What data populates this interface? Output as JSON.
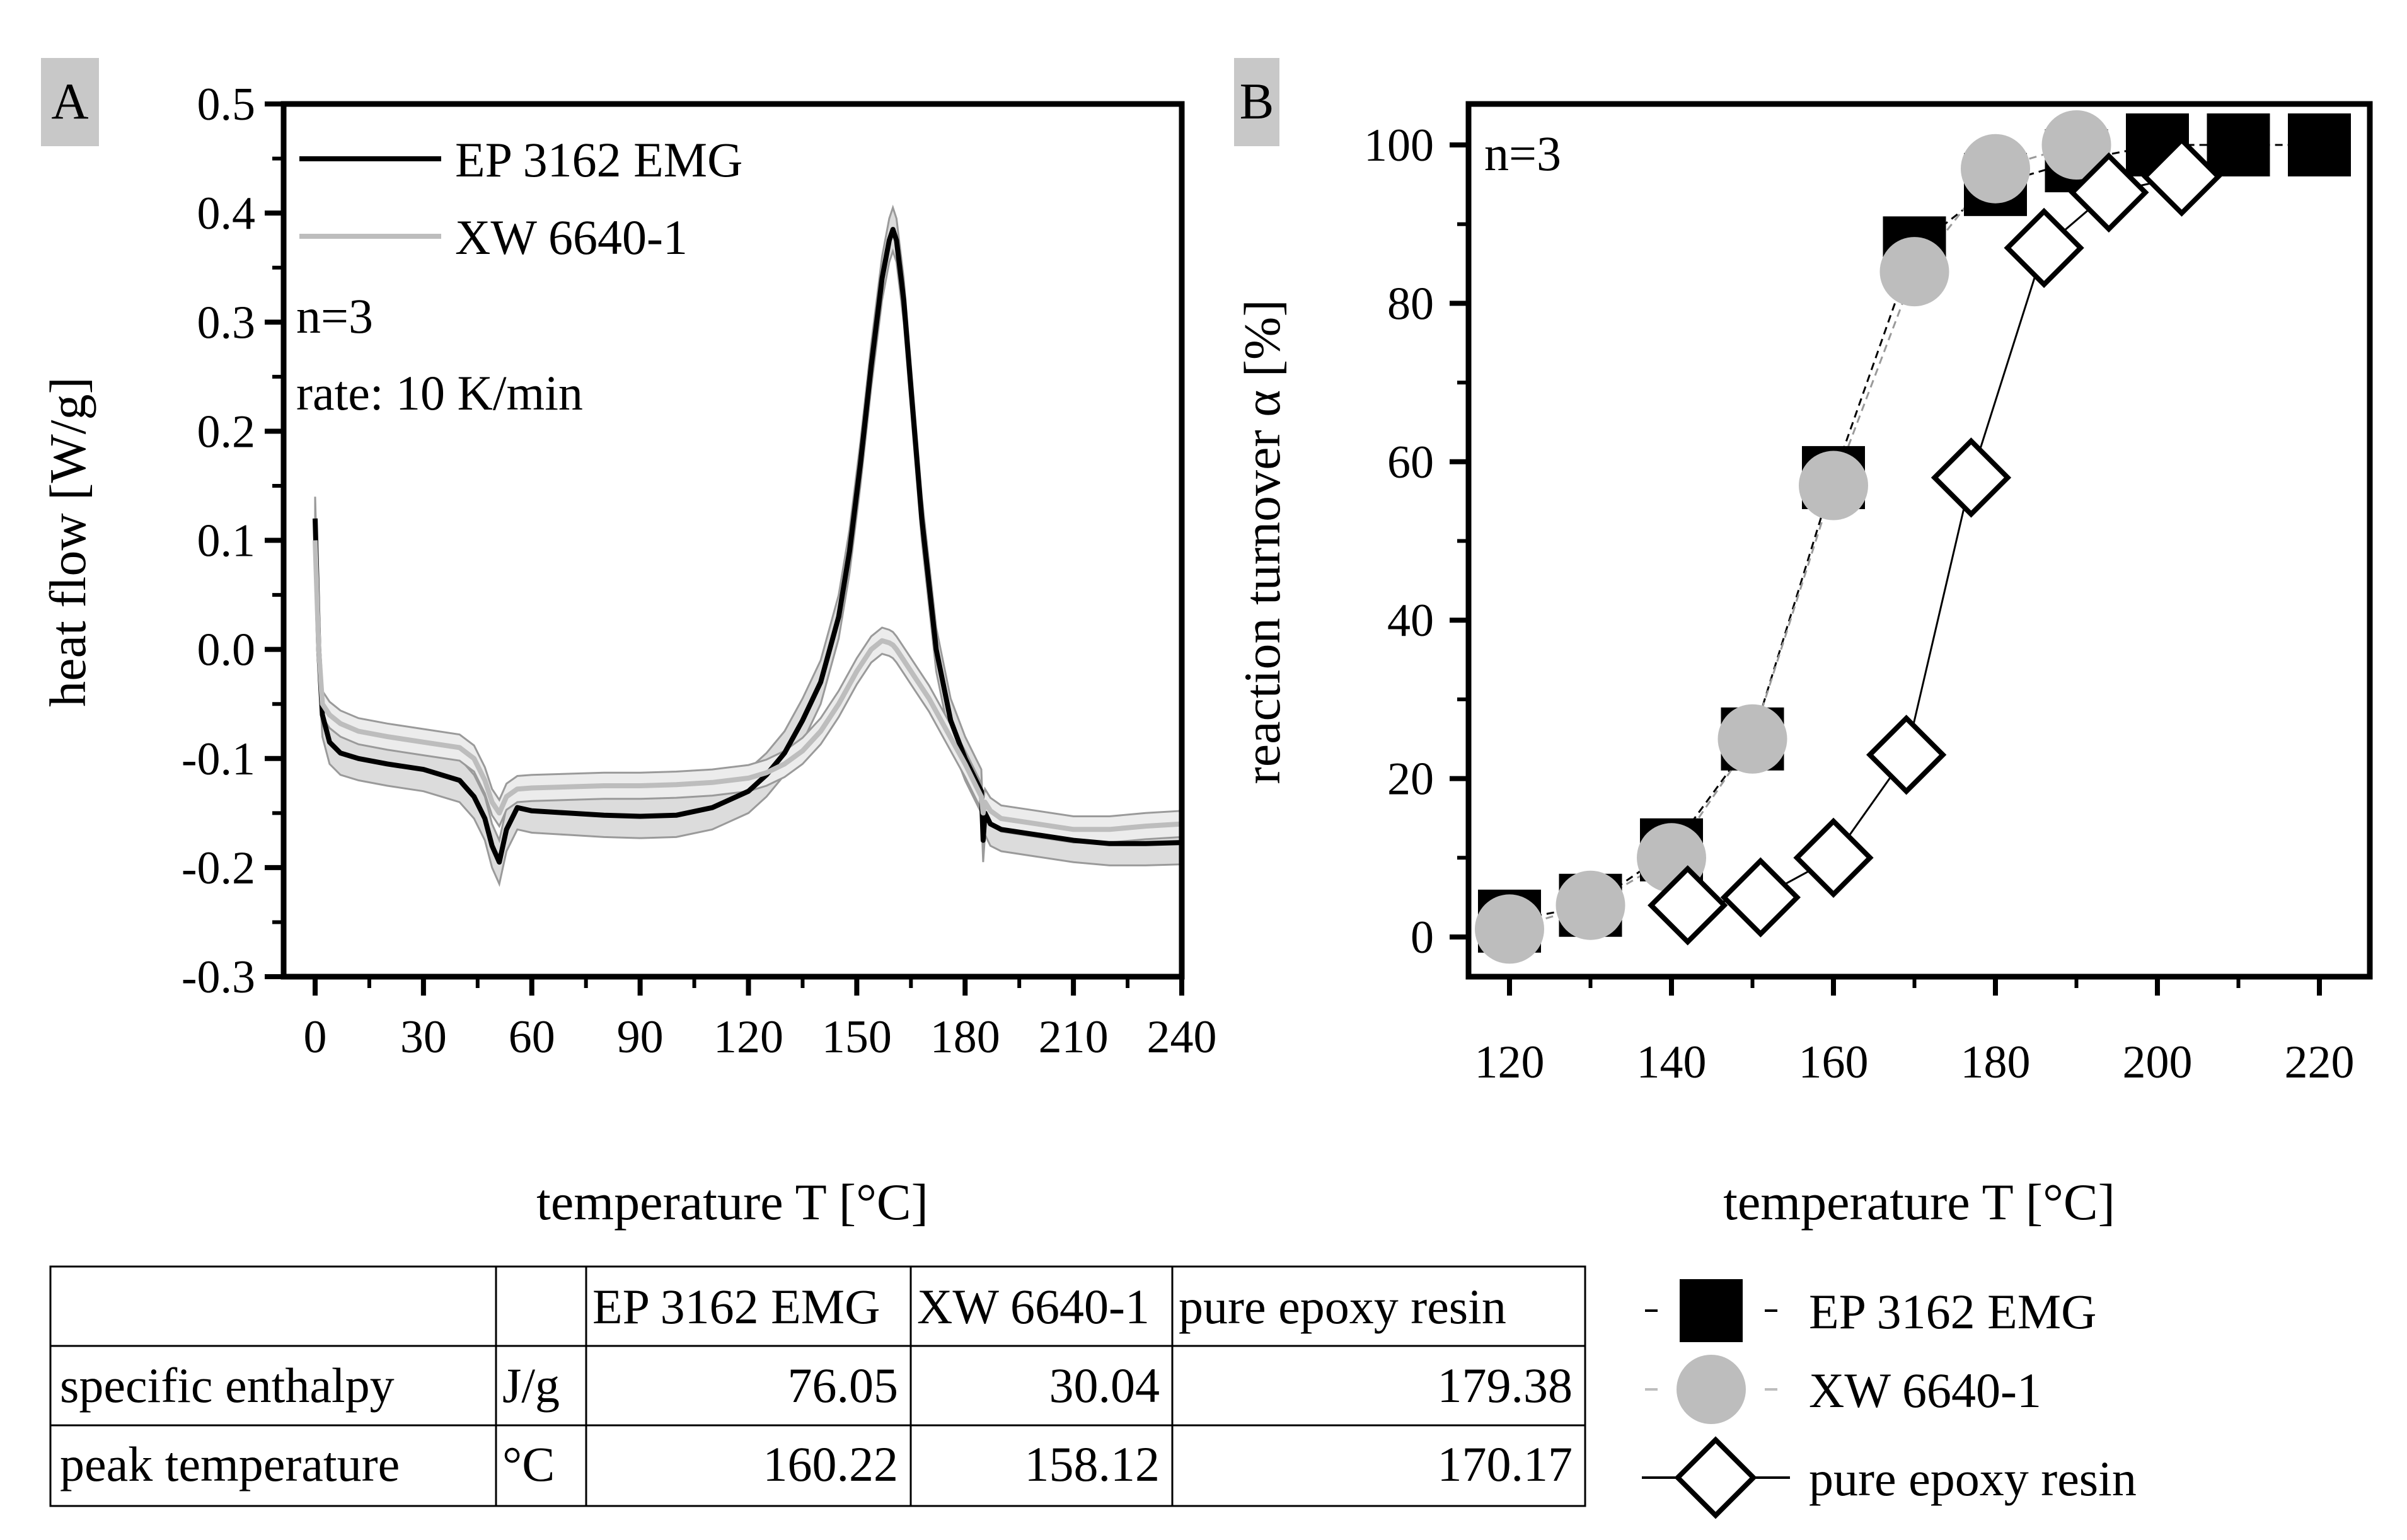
{
  "chart_data": [
    {
      "panel": "A",
      "type": "line",
      "xlabel": "temperature T [°C]",
      "ylabel": "heat flow [W/g]",
      "xlim": [
        0,
        240
      ],
      "ylim": [
        -0.3,
        0.5
      ],
      "xticks": [
        "0",
        "30",
        "60",
        "90",
        "120",
        "150",
        "180",
        "210",
        "240"
      ],
      "yticks": [
        "0.5",
        "0.4",
        "0.3",
        "0.2",
        "0.1",
        "0.0",
        "-0.1",
        "-0.2",
        "-0.3"
      ],
      "annotations": [
        "n=3",
        "rate: 10 K/min"
      ],
      "legend": [
        "EP 3162 EMG",
        "XW 6640-1"
      ],
      "series": [
        {
          "name": "EP 3162 EMG",
          "color": "#000000",
          "band_color": "#dcdcdc",
          "x": [
            0,
            1,
            2,
            4,
            7,
            12,
            20,
            30,
            40,
            44,
            47,
            49,
            51,
            53,
            56,
            60,
            70,
            80,
            90,
            100,
            110,
            120,
            125,
            130,
            135,
            140,
            145,
            148,
            151,
            154,
            157,
            159,
            160,
            161,
            163,
            165,
            168,
            172,
            176,
            180,
            183,
            184.5,
            185,
            185.5,
            187,
            190,
            200,
            210,
            220,
            230,
            240
          ],
          "y": [
            0.12,
            0.0,
            -0.06,
            -0.085,
            -0.095,
            -0.1,
            -0.105,
            -0.11,
            -0.12,
            -0.135,
            -0.155,
            -0.18,
            -0.195,
            -0.165,
            -0.145,
            -0.148,
            -0.15,
            -0.152,
            -0.153,
            -0.152,
            -0.145,
            -0.13,
            -0.115,
            -0.095,
            -0.065,
            -0.03,
            0.03,
            0.09,
            0.17,
            0.26,
            0.34,
            0.375,
            0.385,
            0.375,
            0.32,
            0.24,
            0.12,
            0.0,
            -0.065,
            -0.1,
            -0.12,
            -0.13,
            -0.175,
            -0.15,
            -0.16,
            -0.165,
            -0.17,
            -0.175,
            -0.178,
            -0.178,
            -0.177
          ],
          "band_half_width": 0.02
        },
        {
          "name": "XW 6640-1",
          "color": "#bdbdbd",
          "band_color": "#ececec",
          "x": [
            0,
            1,
            2,
            4,
            7,
            12,
            20,
            30,
            40,
            44,
            47,
            49,
            51,
            53,
            56,
            60,
            70,
            80,
            90,
            100,
            110,
            120,
            125,
            130,
            135,
            140,
            145,
            150,
            154,
            157,
            159,
            160,
            161,
            163,
            166,
            170,
            175,
            180,
            183,
            184.5,
            185,
            185.5,
            187,
            190,
            200,
            210,
            220,
            230,
            240
          ],
          "y": [
            0.1,
            0.0,
            -0.05,
            -0.06,
            -0.068,
            -0.075,
            -0.08,
            -0.085,
            -0.09,
            -0.1,
            -0.12,
            -0.14,
            -0.15,
            -0.135,
            -0.128,
            -0.127,
            -0.126,
            -0.125,
            -0.125,
            -0.124,
            -0.122,
            -0.118,
            -0.113,
            -0.105,
            -0.093,
            -0.075,
            -0.05,
            -0.02,
            0.0,
            0.008,
            0.006,
            0.004,
            0.0,
            -0.01,
            -0.025,
            -0.045,
            -0.075,
            -0.105,
            -0.125,
            -0.135,
            -0.15,
            -0.14,
            -0.148,
            -0.155,
            -0.16,
            -0.165,
            -0.165,
            -0.162,
            -0.16
          ],
          "band_half_width": 0.012
        }
      ]
    },
    {
      "panel": "B",
      "type": "scatter",
      "xlabel": "temperature T [°C]",
      "ylabel": "reaction turnover α [%]",
      "xlim": [
        115,
        225
      ],
      "ylim": [
        -5,
        105
      ],
      "xticks": [
        "120",
        "140",
        "160",
        "180",
        "200",
        "220"
      ],
      "yticks": [
        "0",
        "20",
        "40",
        "60",
        "80",
        "100"
      ],
      "annotations": [
        "n=3"
      ],
      "series": [
        {
          "name": "EP 3162 EMG",
          "marker": "square",
          "color": "#000000",
          "line": "dashed",
          "x": [
            120,
            130,
            140,
            150,
            160,
            170,
            180,
            190,
            200,
            210,
            220
          ],
          "y": [
            2,
            4,
            11,
            25,
            58,
            87,
            95,
            98,
            100,
            100,
            100
          ]
        },
        {
          "name": "XW 6640-1",
          "marker": "circle",
          "color": "#bdbdbd",
          "line": "dashed",
          "x": [
            120,
            130,
            140,
            150,
            160,
            170,
            180,
            190
          ],
          "y": [
            1,
            4,
            10,
            25,
            57,
            84,
            97,
            100
          ]
        },
        {
          "name": "pure epoxy resin",
          "marker": "diamond",
          "color": "#ffffff",
          "line": "solid",
          "x": [
            142,
            151,
            160,
            169,
            177,
            186,
            194,
            203
          ],
          "y": [
            4,
            5,
            10,
            23,
            58,
            87,
            94,
            96
          ]
        }
      ]
    }
  ],
  "panel_labels": [
    "A",
    "B"
  ],
  "legend_b": [
    "EP 3162 EMG",
    "XW 6640-1",
    "pure epoxy resin"
  ],
  "table": {
    "headers": [
      "",
      "",
      "EP 3162 EMG",
      "XW 6640-1",
      "pure epoxy resin"
    ],
    "rows": [
      [
        "specific enthalpy",
        "J/g",
        "76.05",
        "30.04",
        "179.38"
      ],
      [
        "peak temperature",
        "°C",
        "160.22",
        "158.12",
        "170.17"
      ]
    ]
  }
}
